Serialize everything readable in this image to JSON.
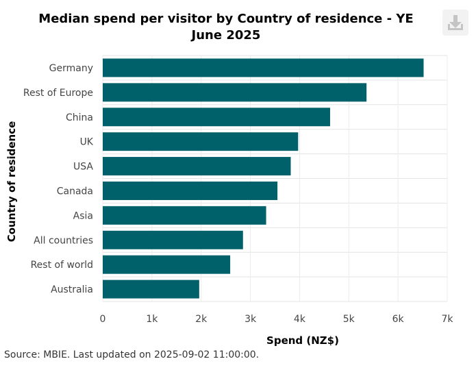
{
  "chart_data": {
    "type": "bar",
    "orientation": "horizontal",
    "title": "Median spend per visitor by Country of residence - YE June 2025",
    "xlabel": "Spend (NZ$)",
    "ylabel": "Country of residence",
    "categories": [
      "Germany",
      "Rest of Europe",
      "China",
      "UK",
      "USA",
      "Canada",
      "Asia",
      "All countries",
      "Rest of world",
      "Australia"
    ],
    "values": [
      6520,
      5360,
      4620,
      3970,
      3820,
      3550,
      3320,
      2850,
      2590,
      1960
    ],
    "xlim": [
      0,
      7000
    ],
    "xticks": [
      0,
      1000,
      2000,
      3000,
      4000,
      5000,
      6000,
      7000
    ],
    "xtick_labels": [
      "0",
      "1k",
      "2k",
      "3k",
      "4k",
      "5k",
      "6k",
      "7k"
    ],
    "bar_color": "#00616b",
    "grid": true,
    "legend": "none"
  },
  "source": "Source: MBIE. Last updated on 2025-09-02 11:00:00.",
  "toolbar": {
    "download_icon": "download-icon"
  }
}
